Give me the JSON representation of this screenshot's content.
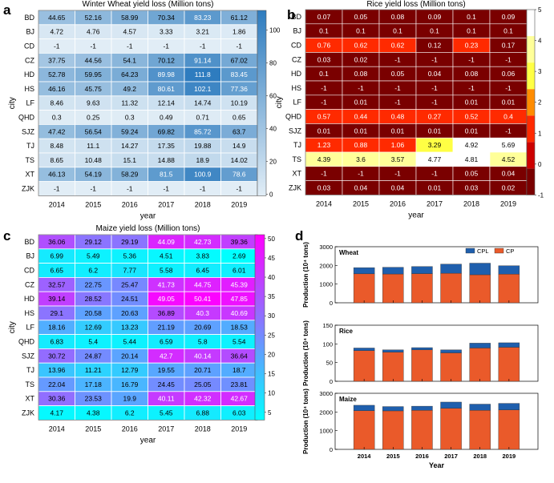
{
  "panel_labels": [
    "a",
    "b",
    "c",
    "d"
  ],
  "chart_data": [
    {
      "type": "heatmap",
      "id": "a",
      "title": "Winter Wheat yield loss (Million tons)",
      "xlabel": "year",
      "ylabel": "city",
      "x": [
        "2014",
        "2015",
        "2016",
        "2017",
        "2018",
        "2019"
      ],
      "y": [
        "BD",
        "BJ",
        "CD",
        "CZ",
        "HD",
        "HS",
        "LF",
        "QHD",
        "SJZ",
        "TJ",
        "TS",
        "XT",
        "ZJK"
      ],
      "values": [
        [
          "44.65",
          "52.16",
          "58.99",
          "70.34",
          "83.23",
          "61.12"
        ],
        [
          "4.72",
          "4.76",
          "4.57",
          "3.33",
          "3.21",
          "1.86"
        ],
        [
          "-1",
          "-1",
          "-1",
          "-1",
          "-1",
          "-1"
        ],
        [
          "37.75",
          "44.56",
          "54.1",
          "70.12",
          "91.14",
          "67.02"
        ],
        [
          "52.78",
          "59.95",
          "64.23",
          "89.98",
          "111.8",
          "83.45"
        ],
        [
          "46.16",
          "45.75",
          "49.2",
          "80.61",
          "102.1",
          "77.36"
        ],
        [
          "8.46",
          "9.63",
          "11.32",
          "12.14",
          "14.74",
          "10.19"
        ],
        [
          "0.3",
          "0.25",
          "0.3",
          "0.49",
          "0.71",
          "0.65"
        ],
        [
          "47.42",
          "56.54",
          "59.24",
          "69.82",
          "85.72",
          "63.7"
        ],
        [
          "8.48",
          "11.1",
          "14.27",
          "17.35",
          "19.88",
          "14.9"
        ],
        [
          "8.65",
          "10.48",
          "15.1",
          "14.88",
          "18.9",
          "14.02"
        ],
        [
          "46.13",
          "54.19",
          "58.29",
          "81.5",
          "100.9",
          "78.6"
        ],
        [
          "-1",
          "-1",
          "-1",
          "-1",
          "-1",
          "-1"
        ]
      ],
      "colorbar": {
        "ticks": [
          "0",
          "20",
          "40",
          "60",
          "80",
          "100"
        ],
        "min": -1,
        "max": 112
      },
      "colormap": [
        "#e1edf6",
        "#2e7cbf"
      ]
    },
    {
      "type": "heatmap",
      "id": "b",
      "title": "Rice yield loss (Million tons)",
      "xlabel": "year",
      "ylabel": "city",
      "x": [
        "2014",
        "2015",
        "2016",
        "2017",
        "2018",
        "2019"
      ],
      "y": [
        "BD",
        "BJ",
        "CD",
        "CZ",
        "HD",
        "HS",
        "LF",
        "QHD",
        "SJZ",
        "TJ",
        "TS",
        "XT",
        "ZJK"
      ],
      "values": [
        [
          "0.07",
          "0.05",
          "0.08",
          "0.09",
          "0.1",
          "0.09"
        ],
        [
          "0.1",
          "0.1",
          "0.1",
          "0.1",
          "0.1",
          "0.1"
        ],
        [
          "0.76",
          "0.62",
          "0.62",
          "0.12",
          "0.23",
          "0.17"
        ],
        [
          "0.03",
          "0.02",
          "-1",
          "-1",
          "-1",
          "-1"
        ],
        [
          "0.1",
          "0.08",
          "0.05",
          "0.04",
          "0.08",
          "0.06"
        ],
        [
          "-1",
          "-1",
          "-1",
          "-1",
          "-1",
          "-1"
        ],
        [
          "-1",
          "0.01",
          "-1",
          "-1",
          "0.01",
          "0.01"
        ],
        [
          "0.57",
          "0.44",
          "0.48",
          "0.27",
          "0.52",
          "0.4"
        ],
        [
          "0.01",
          "0.01",
          "0.01",
          "0.01",
          "0.01",
          "-1"
        ],
        [
          "1.23",
          "0.88",
          "1.06",
          "3.29",
          "4.92",
          "5.69"
        ],
        [
          "4.39",
          "3.6",
          "3.57",
          "4.77",
          "4.81",
          "4.52"
        ],
        [
          "-1",
          "-1",
          "-1",
          "-1",
          "0.05",
          "0.04"
        ],
        [
          "0.03",
          "0.04",
          "0.04",
          "0.01",
          "0.03",
          "0.02"
        ]
      ],
      "colorbar": {
        "ticks": [
          "-1",
          "0",
          "1",
          "2",
          "3",
          "4",
          "5"
        ]
      },
      "discrete_colors": [
        "#7a0000",
        "#cc0000",
        "#ff2a00",
        "#ff8c00",
        "#ffff44",
        "#ffff99",
        "#ffffff"
      ]
    },
    {
      "type": "heatmap",
      "id": "c",
      "title": "Maize yield loss (Million tons)",
      "xlabel": "year",
      "ylabel": "city",
      "x": [
        "2014",
        "2015",
        "2016",
        "2017",
        "2018",
        "2019"
      ],
      "y": [
        "BD",
        "BJ",
        "CD",
        "CZ",
        "HD",
        "HS",
        "LF",
        "QHD",
        "SJZ",
        "TJ",
        "TS",
        "XT",
        "ZJK"
      ],
      "values": [
        [
          "36.06",
          "29.12",
          "29.19",
          "44.09",
          "42.73",
          "39.36"
        ],
        [
          "6.99",
          "5.49",
          "5.36",
          "4.51",
          "3.83",
          "2.69"
        ],
        [
          "6.65",
          "6.2",
          "7.77",
          "5.58",
          "6.45",
          "6.01"
        ],
        [
          "32.57",
          "22.75",
          "25.47",
          "41.73",
          "44.75",
          "45.39"
        ],
        [
          "39.14",
          "28.52",
          "24.51",
          "49.05",
          "50.41",
          "47.85"
        ],
        [
          "29.1",
          "20.58",
          "20.63",
          "36.89",
          "40.3",
          "40.69"
        ],
        [
          "18.16",
          "12.69",
          "13.23",
          "21.19",
          "20.69",
          "18.53"
        ],
        [
          "6.83",
          "5.4",
          "5.44",
          "6.59",
          "5.8",
          "5.54"
        ],
        [
          "30.72",
          "24.87",
          "20.14",
          "42.7",
          "40.14",
          "36.64"
        ],
        [
          "13.96",
          "11.21",
          "12.79",
          "19.55",
          "20.71",
          "18.7"
        ],
        [
          "22.04",
          "17.18",
          "16.79",
          "24.45",
          "25.05",
          "23.81"
        ],
        [
          "30.36",
          "23.53",
          "19.9",
          "40.11",
          "42.32",
          "42.67"
        ],
        [
          "4.17",
          "4.38",
          "6.2",
          "5.45",
          "6.88",
          "6.03"
        ]
      ],
      "colorbar": {
        "ticks": [
          "5",
          "10",
          "15",
          "20",
          "25",
          "30",
          "35",
          "40",
          "45",
          "50"
        ],
        "min": 3,
        "max": 51
      },
      "colormap": [
        "#00ffff",
        "#ff00ff"
      ]
    },
    {
      "type": "bar",
      "id": "d",
      "stacked": true,
      "xlabel": "Year",
      "ylabel": "Production (10⁴ tons)",
      "categories": [
        "2014",
        "2015",
        "2016",
        "2017",
        "2018",
        "2019"
      ],
      "legend": [
        "CPL",
        "CP"
      ],
      "colors": {
        "CPL": "#1f5fad",
        "CP": "#ea5a2a"
      },
      "subplots": [
        {
          "title": "Wheat",
          "ylim": [
            0,
            3000
          ],
          "yticks": [
            "0",
            "1000",
            "2000",
            "3000"
          ],
          "cp": [
            1550,
            1540,
            1560,
            1580,
            1500,
            1530
          ],
          "cpl": [
            330,
            360,
            380,
            490,
            620,
            450
          ]
        },
        {
          "title": "Rice",
          "ylim": [
            0,
            150
          ],
          "yticks": [
            "0",
            "50",
            "100",
            "150"
          ],
          "cp": [
            82,
            78,
            84,
            76,
            89,
            91
          ],
          "cpl": [
            7,
            6,
            6,
            8,
            13,
            12
          ]
        },
        {
          "title": "Maize",
          "ylim": [
            0,
            3000
          ],
          "yticks": [
            "0",
            "1000",
            "2000",
            "3000"
          ],
          "cp": [
            2070,
            2060,
            2090,
            2200,
            2090,
            2110
          ],
          "cpl": [
            290,
            230,
            220,
            330,
            330,
            350
          ]
        }
      ]
    }
  ]
}
